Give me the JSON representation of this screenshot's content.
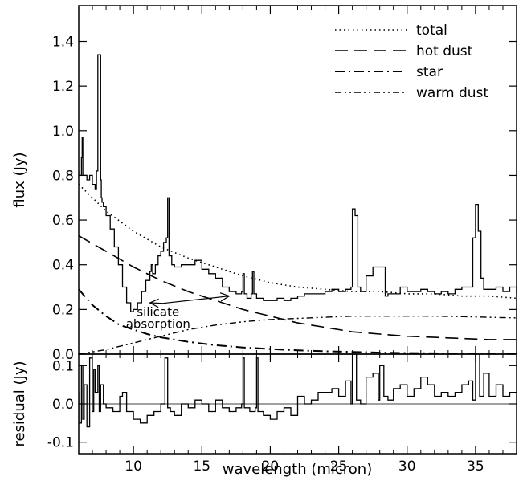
{
  "chart_data": [
    {
      "type": "line",
      "ylabel": "flux (Jy)",
      "xlim": [
        6.0,
        38.0
      ],
      "ylim": [
        0.0,
        1.56
      ],
      "x_ticks": [
        10,
        15,
        20,
        25,
        30,
        35
      ],
      "y_ticks": [
        0.0,
        0.2,
        0.4,
        0.6,
        0.8,
        1.0,
        1.2,
        1.4
      ],
      "y_tick_labels": [
        "0.0",
        "0.2",
        "0.4",
        "0.6",
        "0.8",
        "1.0",
        "1.2",
        "1.4"
      ],
      "legend_position": "top-right",
      "legend": [
        "total",
        "hot dust",
        "star",
        "warm dust"
      ],
      "annotation": {
        "text_lines": [
          "silicate",
          "absorption"
        ],
        "arrow_targets": [
          [
            11.2,
            0.23
          ],
          [
            17.0,
            0.26
          ]
        ],
        "text_at": [
          11.8,
          0.17
        ]
      },
      "series": [
        {
          "name": "spectrum",
          "style": "solid",
          "steps": true,
          "x": [
            5.8,
            6.0,
            6.2,
            6.25,
            6.3,
            6.4,
            6.6,
            6.8,
            7.0,
            7.2,
            7.3,
            7.4,
            7.6,
            7.65,
            7.7,
            7.8,
            8.0,
            8.3,
            8.6,
            8.9,
            9.2,
            9.5,
            9.8,
            10.0,
            10.3,
            10.6,
            10.9,
            11.2,
            11.3,
            11.4,
            11.6,
            11.8,
            12.0,
            12.2,
            12.4,
            12.5,
            12.6,
            12.8,
            13.0,
            13.5,
            14.0,
            14.5,
            15.0,
            15.5,
            16.0,
            16.5,
            17.0,
            17.5,
            17.9,
            18.0,
            18.1,
            18.3,
            18.6,
            18.7,
            18.8,
            19.0,
            19.5,
            20.0,
            20.5,
            21.0,
            21.5,
            22.0,
            22.5,
            23.0,
            23.5,
            24.0,
            24.5,
            25.0,
            25.5,
            25.9,
            26.0,
            26.2,
            26.4,
            26.6,
            27.0,
            27.5,
            28.0,
            28.4,
            28.6,
            29.0,
            29.5,
            30.0,
            30.5,
            31.0,
            31.5,
            32.0,
            32.5,
            33.0,
            33.5,
            34.0,
            34.5,
            34.8,
            35.0,
            35.2,
            35.4,
            35.6,
            36.0,
            36.5,
            37.0,
            37.5,
            38.0
          ],
          "y": [
            0.82,
            0.8,
            0.88,
            0.97,
            0.8,
            0.8,
            0.78,
            0.8,
            0.76,
            0.74,
            0.82,
            1.34,
            0.78,
            0.7,
            0.68,
            0.66,
            0.62,
            0.56,
            0.48,
            0.4,
            0.3,
            0.23,
            0.19,
            0.2,
            0.23,
            0.28,
            0.33,
            0.37,
            0.4,
            0.36,
            0.4,
            0.44,
            0.46,
            0.5,
            0.52,
            0.7,
            0.44,
            0.4,
            0.39,
            0.4,
            0.4,
            0.42,
            0.38,
            0.36,
            0.34,
            0.3,
            0.28,
            0.27,
            0.28,
            0.36,
            0.27,
            0.25,
            0.27,
            0.37,
            0.27,
            0.25,
            0.24,
            0.24,
            0.25,
            0.24,
            0.25,
            0.26,
            0.27,
            0.27,
            0.27,
            0.28,
            0.29,
            0.28,
            0.29,
            0.3,
            0.65,
            0.62,
            0.3,
            0.28,
            0.35,
            0.39,
            0.39,
            0.26,
            0.27,
            0.27,
            0.3,
            0.28,
            0.28,
            0.29,
            0.28,
            0.27,
            0.28,
            0.27,
            0.29,
            0.3,
            0.3,
            0.52,
            0.67,
            0.55,
            0.34,
            0.29,
            0.29,
            0.3,
            0.28,
            0.3,
            0.27
          ]
        },
        {
          "name": "total",
          "style": "dotted",
          "x": [
            6.0,
            8.0,
            10.0,
            12.0,
            14.0,
            16.0,
            18.0,
            20.0,
            22.0,
            24.0,
            26.0,
            28.0,
            30.0,
            32.0,
            34.0,
            36.0,
            38.0
          ],
          "y": [
            0.76,
            0.64,
            0.55,
            0.48,
            0.43,
            0.39,
            0.35,
            0.32,
            0.3,
            0.29,
            0.28,
            0.28,
            0.27,
            0.27,
            0.26,
            0.26,
            0.25
          ]
        },
        {
          "name": "hot dust",
          "style": "long-dashed",
          "x": [
            6.0,
            8.0,
            10.0,
            12.0,
            14.0,
            16.0,
            18.0,
            20.0,
            22.0,
            24.0,
            26.0,
            28.0,
            30.0,
            32.0,
            34.0,
            36.0,
            38.0
          ],
          "y": [
            0.53,
            0.46,
            0.39,
            0.33,
            0.28,
            0.24,
            0.2,
            0.17,
            0.14,
            0.12,
            0.1,
            0.09,
            0.08,
            0.075,
            0.07,
            0.065,
            0.065
          ]
        },
        {
          "name": "star",
          "style": "dash-dot",
          "x": [
            6.0,
            7.0,
            8.0,
            9.0,
            10.0,
            11.0,
            12.0,
            14.0,
            16.0,
            18.0,
            20.0,
            22.0,
            24.0,
            26.0,
            28.0,
            30.0,
            32.0,
            34.0,
            36.0,
            38.0
          ],
          "y": [
            0.29,
            0.22,
            0.17,
            0.13,
            0.11,
            0.09,
            0.075,
            0.055,
            0.04,
            0.03,
            0.023,
            0.017,
            0.013,
            0.01,
            0.007,
            0.005,
            0.004,
            0.003,
            0.002,
            0.001
          ]
        },
        {
          "name": "warm dust",
          "style": "dash-dot-dot",
          "x": [
            6.0,
            8.0,
            10.0,
            12.0,
            14.0,
            16.0,
            18.0,
            20.0,
            22.0,
            24.0,
            26.0,
            28.0,
            30.0,
            32.0,
            34.0,
            36.0,
            38.0
          ],
          "y": [
            0.0,
            0.02,
            0.05,
            0.08,
            0.11,
            0.13,
            0.145,
            0.155,
            0.16,
            0.165,
            0.17,
            0.17,
            0.17,
            0.17,
            0.168,
            0.165,
            0.162
          ]
        }
      ]
    },
    {
      "type": "line",
      "xlabel": "wavelength (micron)",
      "ylabel": "residual (Jy)",
      "xlim": [
        6.0,
        38.0
      ],
      "ylim": [
        -0.13,
        0.13
      ],
      "x_ticks": [
        10,
        15,
        20,
        25,
        30,
        35
      ],
      "x_tick_labels": [
        "10",
        "15",
        "20",
        "25",
        "30",
        "35"
      ],
      "y_ticks": [
        -0.1,
        0.0,
        0.1
      ],
      "y_tick_labels": [
        "-0.1",
        "0.0",
        "0.1"
      ],
      "series": [
        {
          "name": "residual",
          "style": "solid",
          "steps": true,
          "x": [
            5.8,
            6.0,
            6.2,
            6.3,
            6.4,
            6.6,
            6.8,
            7.0,
            7.1,
            7.2,
            7.4,
            7.5,
            7.6,
            7.8,
            8.0,
            8.5,
            9.0,
            9.2,
            9.5,
            10.0,
            10.5,
            11.0,
            11.5,
            12.0,
            12.3,
            12.5,
            12.7,
            13.0,
            13.5,
            14.0,
            14.5,
            15.0,
            15.5,
            16.0,
            16.5,
            17.0,
            17.5,
            17.9,
            18.0,
            18.1,
            18.5,
            18.9,
            19.0,
            19.1,
            19.5,
            20.0,
            20.5,
            21.0,
            21.5,
            22.0,
            22.5,
            23.0,
            23.5,
            24.0,
            24.5,
            25.0,
            25.5,
            25.9,
            26.0,
            26.3,
            26.6,
            27.0,
            27.5,
            27.9,
            28.0,
            28.3,
            28.6,
            29.0,
            29.5,
            30.0,
            30.5,
            31.0,
            31.5,
            32.0,
            32.5,
            33.0,
            33.5,
            34.0,
            34.5,
            34.8,
            35.0,
            35.3,
            35.6,
            36.0,
            36.5,
            37.0,
            37.5,
            38.0
          ],
          "y": [
            0.03,
            -0.05,
            0.1,
            -0.04,
            0.05,
            -0.06,
            0.12,
            -0.02,
            0.09,
            0.03,
            0.1,
            -0.02,
            0.05,
            0.0,
            -0.01,
            -0.02,
            0.02,
            0.03,
            -0.02,
            -0.04,
            -0.05,
            -0.03,
            -0.02,
            0.0,
            0.12,
            -0.01,
            -0.02,
            -0.03,
            0.0,
            -0.01,
            0.01,
            0.0,
            -0.02,
            0.01,
            -0.01,
            -0.02,
            -0.01,
            0.0,
            0.12,
            -0.01,
            -0.02,
            -0.01,
            0.12,
            -0.02,
            -0.03,
            -0.04,
            -0.02,
            -0.01,
            -0.03,
            0.02,
            0.0,
            0.01,
            0.03,
            0.03,
            0.04,
            0.02,
            0.06,
            0.0,
            0.13,
            0.01,
            0.0,
            0.07,
            0.08,
            0.01,
            0.1,
            0.02,
            0.01,
            0.04,
            0.05,
            0.02,
            0.04,
            0.07,
            0.05,
            0.02,
            0.03,
            0.02,
            0.03,
            0.05,
            0.06,
            0.01,
            0.13,
            0.02,
            0.08,
            0.02,
            0.05,
            0.02,
            0.03,
            0.03
          ]
        }
      ]
    }
  ]
}
